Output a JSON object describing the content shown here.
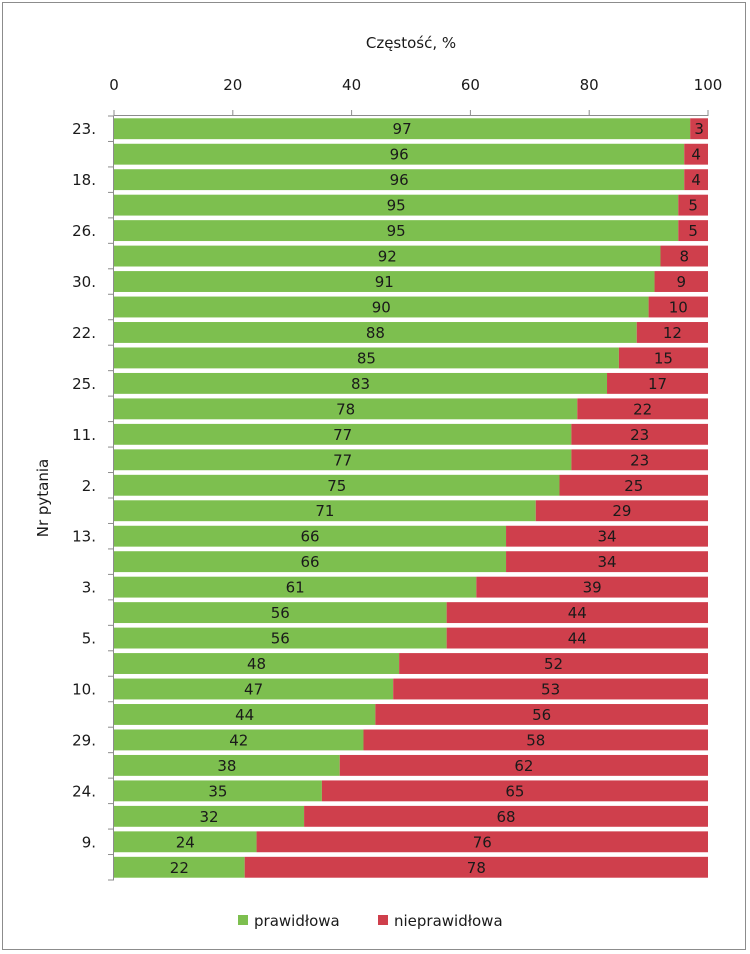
{
  "chart_data": {
    "type": "bar",
    "orientation": "horizontal",
    "stacked": true,
    "title": "Częstość, %",
    "xlabel": "Częstość, %",
    "ylabel": "Nr pytania",
    "xlim": [
      0,
      100
    ],
    "xticks": [
      "0",
      "20",
      "40",
      "60",
      "80",
      "100"
    ],
    "categories": [
      "23.",
      "",
      "18.",
      "",
      "26.",
      "",
      "30.",
      "",
      "22.",
      "",
      "25.",
      "",
      "11.",
      "",
      "2.",
      "",
      "13.",
      "",
      "3.",
      "",
      "5.",
      "",
      "10.",
      "",
      "29.",
      "",
      "24.",
      "",
      "9.",
      ""
    ],
    "series": [
      {
        "name": "prawidłowa",
        "color": "#7dbf4f",
        "values": [
          97,
          96,
          96,
          95,
          95,
          92,
          91,
          90,
          88,
          85,
          83,
          78,
          77,
          77,
          75,
          71,
          66,
          66,
          61,
          56,
          56,
          48,
          47,
          44,
          42,
          38,
          35,
          32,
          24,
          22
        ]
      },
      {
        "name": "nieprawidłowa",
        "color": "#cf3f4c",
        "values": [
          3,
          4,
          4,
          5,
          5,
          8,
          9,
          10,
          12,
          15,
          17,
          22,
          23,
          23,
          25,
          29,
          34,
          34,
          39,
          44,
          44,
          52,
          53,
          56,
          58,
          62,
          65,
          68,
          76,
          78
        ]
      }
    ],
    "legend_position": "bottom",
    "grid": false
  }
}
